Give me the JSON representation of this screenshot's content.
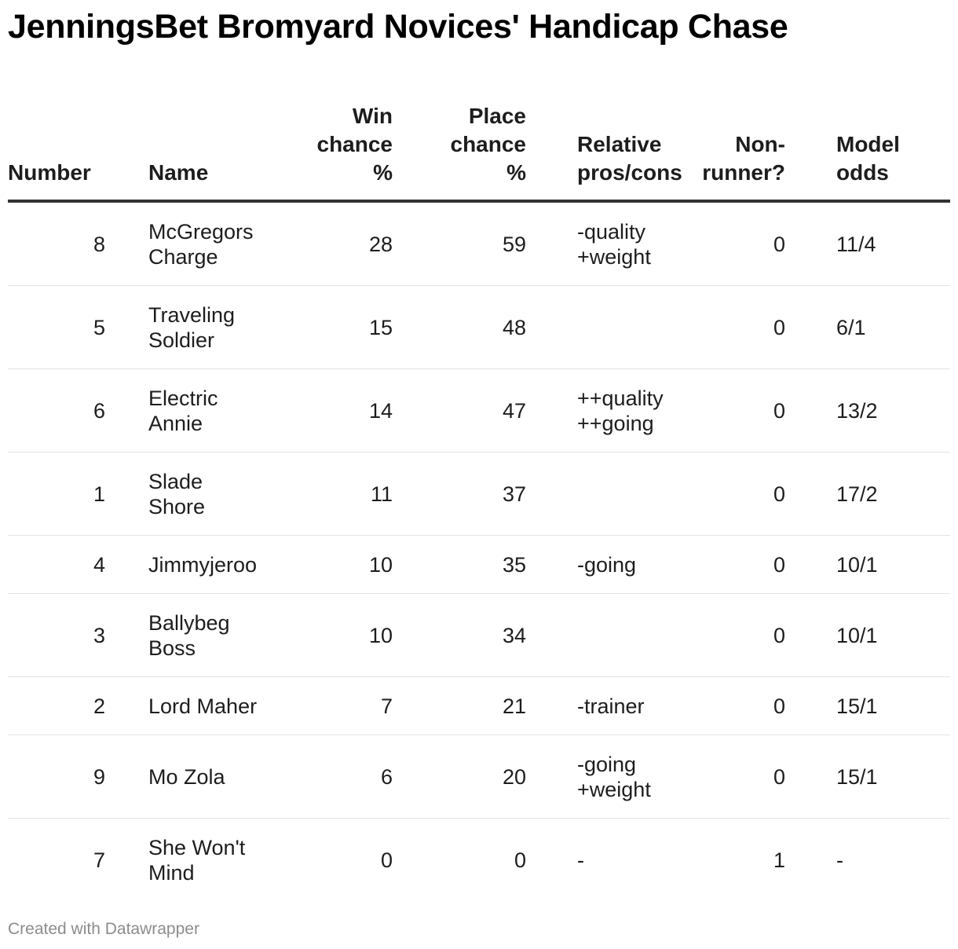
{
  "title": "JenningsBet Bromyard Novices' Handicap Chase",
  "footer": "Created with Datawrapper",
  "chart_data": {
    "type": "table",
    "title": "JenningsBet Bromyard Novices' Handicap Chase",
    "columns": [
      "Number",
      "Name",
      "Win chance %",
      "Place chance %",
      "Relative pros/cons",
      "Non-runner?",
      "Model odds"
    ],
    "header_lines": {
      "number": [
        "Number"
      ],
      "name": [
        "Name"
      ],
      "win": [
        "Win",
        "chance",
        "%"
      ],
      "place": [
        "Place",
        "chance",
        "%"
      ],
      "pros": [
        "Relative",
        "pros/cons"
      ],
      "nr": [
        "Non-",
        "runner?"
      ],
      "odds": [
        "Model",
        "odds"
      ]
    },
    "rows": [
      {
        "number": "8",
        "name": [
          "McGregors",
          "Charge"
        ],
        "win": "28",
        "place": "59",
        "pros": [
          "-quality",
          "+weight"
        ],
        "nr": "0",
        "odds": "11/4"
      },
      {
        "number": "5",
        "name": [
          "Traveling",
          "Soldier"
        ],
        "win": "15",
        "place": "48",
        "pros": [],
        "nr": "0",
        "odds": "6/1"
      },
      {
        "number": "6",
        "name": [
          "Electric",
          "Annie"
        ],
        "win": "14",
        "place": "47",
        "pros": [
          "++quality",
          "++going"
        ],
        "nr": "0",
        "odds": "13/2"
      },
      {
        "number": "1",
        "name": [
          "Slade",
          "Shore"
        ],
        "win": "11",
        "place": "37",
        "pros": [],
        "nr": "0",
        "odds": "17/2"
      },
      {
        "number": "4",
        "name": [
          "Jimmyjeroo"
        ],
        "win": "10",
        "place": "35",
        "pros": [
          "-going"
        ],
        "nr": "0",
        "odds": "10/1"
      },
      {
        "number": "3",
        "name": [
          "Ballybeg",
          "Boss"
        ],
        "win": "10",
        "place": "34",
        "pros": [],
        "nr": "0",
        "odds": "10/1"
      },
      {
        "number": "2",
        "name": [
          "Lord Maher"
        ],
        "win": "7",
        "place": "21",
        "pros": [
          "-trainer"
        ],
        "nr": "0",
        "odds": "15/1"
      },
      {
        "number": "9",
        "name": [
          "Mo Zola"
        ],
        "win": "6",
        "place": "20",
        "pros": [
          "-going",
          "+weight"
        ],
        "nr": "0",
        "odds": "15/1"
      },
      {
        "number": "7",
        "name": [
          "She Won't",
          "Mind"
        ],
        "win": "0",
        "place": "0",
        "pros": [
          "-"
        ],
        "nr": "1",
        "odds": "-"
      }
    ]
  }
}
